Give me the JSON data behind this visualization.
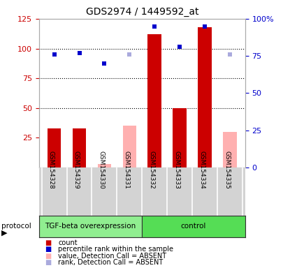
{
  "title": "GDS2974 / 1449592_at",
  "samples": [
    "GSM154328",
    "GSM154329",
    "GSM154330",
    "GSM154331",
    "GSM154332",
    "GSM154333",
    "GSM154334",
    "GSM154335"
  ],
  "count_values": [
    33,
    33,
    3,
    35,
    112,
    50,
    118,
    30
  ],
  "count_absent": [
    false,
    false,
    true,
    true,
    false,
    false,
    false,
    true
  ],
  "rank_values": [
    76,
    77,
    70,
    76,
    95,
    81,
    95,
    76
  ],
  "rank_absent": [
    false,
    false,
    false,
    true,
    false,
    false,
    false,
    true
  ],
  "ylim_left": [
    0,
    125
  ],
  "ylim_right": [
    0,
    100
  ],
  "yticks_left": [
    25,
    50,
    75,
    100,
    125
  ],
  "ytick_labels_left": [
    "25",
    "50",
    "75",
    "100",
    "125"
  ],
  "yticks_right": [
    0,
    25,
    50,
    75,
    100
  ],
  "ytick_labels_right": [
    "0",
    "25",
    "50",
    "75",
    "100%"
  ],
  "protocol_groups": [
    {
      "label": "TGF-beta overexpression",
      "start": 0,
      "end": 4,
      "color": "#90ee90"
    },
    {
      "label": "control",
      "start": 4,
      "end": 8,
      "color": "#55dd55"
    }
  ],
  "bar_width": 0.55,
  "color_red": "#cc0000",
  "color_pink": "#ffb0b0",
  "color_blue": "#0000cc",
  "color_lightblue": "#aaaadd",
  "grid_color": "#000000",
  "bg_plot": "#ffffff",
  "bg_xaxis": "#d3d3d3",
  "left_tick_color": "#cc0000",
  "right_tick_color": "#0000cc",
  "legend_items": [
    {
      "label": "count",
      "color": "#cc0000"
    },
    {
      "label": "percentile rank within the sample",
      "color": "#0000cc"
    },
    {
      "label": "value, Detection Call = ABSENT",
      "color": "#ffb0b0"
    },
    {
      "label": "rank, Detection Call = ABSENT",
      "color": "#aaaadd"
    }
  ]
}
